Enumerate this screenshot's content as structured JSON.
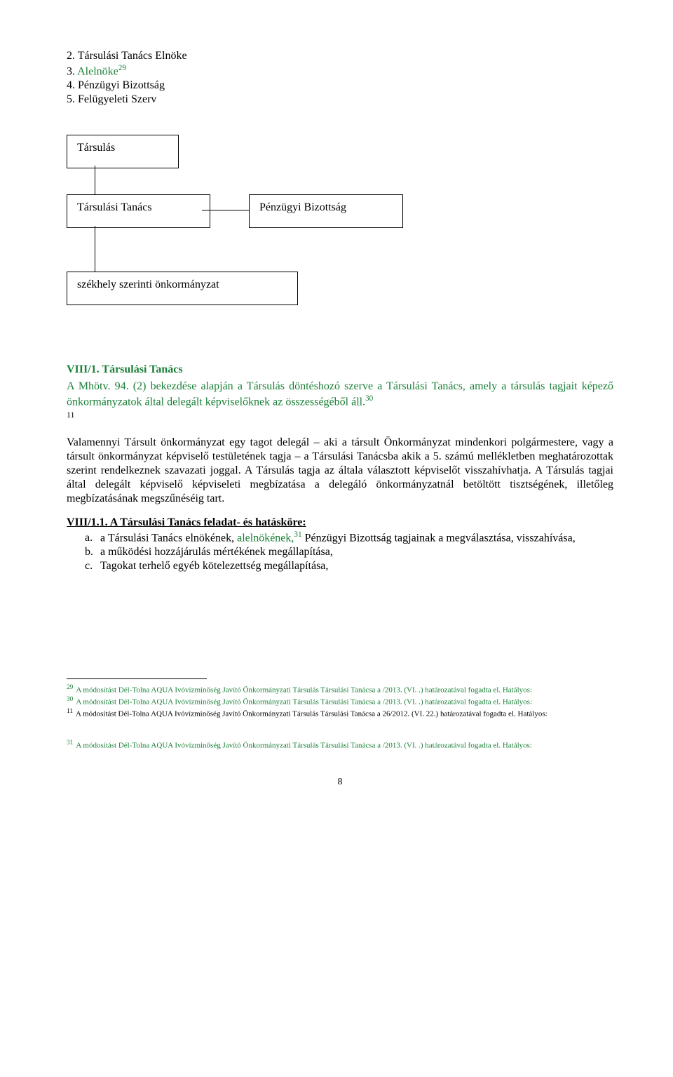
{
  "topList": {
    "line1": "2. Társulási Tanács Elnöke",
    "line2_pre": "3. ",
    "line2_green": "Alelnöke",
    "line2_sup": "29",
    "line3": "4. Pénzügyi Bizottság",
    "line4": "5. Felügyeleti Szerv"
  },
  "org": {
    "box1": "Társulás",
    "box2": "Társulási Tanács",
    "box3": "Pénzügyi Bizottság",
    "box4": "székhely szerinti önkormányzat"
  },
  "sec1": {
    "head": "VIII/1. Társulási Tanács",
    "p1_pre": "A ",
    "p1_green1": "Mhötv. 94. (2) bekezdése alapján a Társulás döntéshozó szerve a Társulási Tanács, amely a társulás tagjait képező önkormányzatok által delegált képviselőknek az összességéből áll.",
    "p1_sup_green": "30",
    "p1_sup_black": "11"
  },
  "para2": "Valamennyi Társult önkormányzat egy tagot delegál – aki a társult Önkormányzat mindenkori polgármestere, vagy a társult önkormányzat képviselő testületének tagja – a Társulási Tanácsba akik a 5. számú mellékletben meghatározottak szerint rendelkeznek szavazati joggal. A Társulás tagja az általa választott képviselőt visszahívhatja. A Társulás tagjai által delegált képviselő képviseleti megbízatása a delegáló önkormányzatnál betöltött tisztségének, illetőleg megbízatásának megszűnéséig tart.",
  "sub": {
    "head": "VIII/1.1. A Társulási Tanács feladat- és hatásköre:",
    "a_pre": "a Társulási Tanács elnökének, ",
    "a_green": "alelnökének,",
    "a_sup": "31",
    "a_post": " Pénzügyi Bizottság tagjainak a megválasztása, visszahívása,",
    "b": "a működési hozzájárulás mértékének megállapítása,",
    "c": "Tagokat terhelő egyéb kötelezettség megállapítása,"
  },
  "fn": {
    "green_tail": "   /2013. (VI.   .) határozatával fogadta el. Hatályos:",
    "f29": "A módosítást Dél-Tolna AQUA Ivóvízminőség Javító Önkormányzati Társulás Társulási Tanácsa a",
    "f30": "A módosítást Dél-Tolna AQUA Ivóvízminőség Javító Önkormányzati Társulás Társulási Tanácsa a",
    "f11": "A módosítást Dél-Tolna AQUA Ivóvízminőség Javító Önkormányzati Társulás Társulási Tanácsa a 26/2012. (VI. 22.) határozatával fogadta el. Hatályos:",
    "f31": "A módosítást Dél-Tolna AQUA Ivóvízminőség Javító Önkormányzati Társulás Társulási Tanácsa a"
  },
  "pageNum": "8"
}
